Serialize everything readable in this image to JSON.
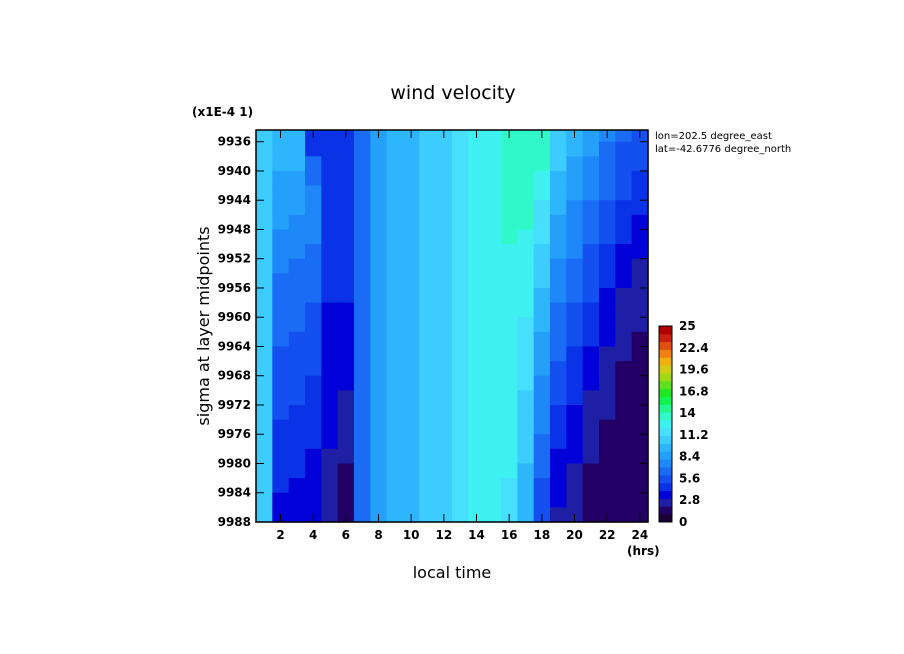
{
  "chart_data": {
    "type": "heatmap",
    "title": "wind velocity",
    "scale_note": "(x1E-4 1)",
    "xlabel": "local time",
    "x_unit": "(hrs)",
    "ylabel": "sigma at layer midpoints",
    "xlim": [
      0.5,
      24.5
    ],
    "ylim": [
      9934.4,
      9988
    ],
    "x_ticks": [
      "2",
      "4",
      "6",
      "8",
      "10",
      "12",
      "14",
      "16",
      "18",
      "20",
      "22",
      "24"
    ],
    "y_ticks": [
      "9936",
      "9940",
      "9944",
      "9948",
      "9952",
      "9956",
      "9960",
      "9964",
      "9968",
      "9972",
      "9976",
      "9980",
      "9984",
      "9988"
    ],
    "annotations": [
      "lon=202.5 degree_east",
      "lat=-42.6776 degree_north"
    ],
    "colorbar": {
      "min": 0,
      "max": 25,
      "tick_labels": [
        "25",
        "22.4",
        "19.6",
        "16.8",
        "14",
        "11.2",
        "8.4",
        "5.6",
        "2.8",
        "0"
      ],
      "colors": [
        "#1a0033",
        "#220066",
        "#1f1fa6",
        "#0000d8",
        "#0a32e6",
        "#1450f0",
        "#1a6cf5",
        "#1e88f8",
        "#24a0fa",
        "#2eb6fc",
        "#3cccfe",
        "#48defe",
        "#3ef0f0",
        "#30f8c8",
        "#20f890",
        "#10f450",
        "#20e820",
        "#60e01c",
        "#a0d818",
        "#d0cc14",
        "#f0b010",
        "#f08010",
        "#e05010",
        "#c82010",
        "#b00000"
      ]
    },
    "grid": false,
    "x": [
      1,
      2,
      3,
      4,
      5,
      6,
      7,
      8,
      9,
      10,
      11,
      12,
      13,
      14,
      15,
      16,
      17,
      18,
      19,
      20,
      21,
      22,
      23,
      24
    ],
    "y": [
      9935,
      9937,
      9939,
      9941,
      9943,
      9945,
      9947,
      9949,
      9951,
      9953,
      9955,
      9957,
      9959,
      9961,
      9963,
      9965,
      9967,
      9969,
      9971,
      9973,
      9975,
      9977,
      9979,
      9981,
      9983,
      9985,
      9987
    ],
    "z": [
      [
        10.3,
        10.3,
        10.3,
        10.3,
        10.3,
        10.3,
        10.3,
        10.3,
        10.3,
        10.3,
        10.3,
        10.3,
        10.3,
        10.3,
        10.3,
        10.3,
        10.3,
        10.3,
        10.3,
        10.3,
        10.3,
        10.3,
        10.3,
        10.3,
        10.3,
        10.3,
        10.3
      ],
      [
        9.6,
        9.6,
        9.3,
        8.9,
        8.5,
        8.2,
        8.0,
        7.7,
        7.4,
        7.1,
        6.9,
        6.7,
        6.5,
        6.3,
        6.1,
        5.9,
        5.7,
        5.5,
        5.3,
        5.1,
        4.9,
        4.7,
        4.5,
        4.3,
        4.1,
        3.9,
        3.7
      ],
      [
        9.6,
        9.5,
        9.2,
        8.8,
        8.4,
        8.0,
        7.7,
        7.4,
        7.1,
        6.8,
        6.6,
        6.4,
        6.2,
        6.0,
        5.8,
        5.6,
        5.4,
        5.2,
        5.0,
        4.8,
        4.6,
        4.4,
        4.2,
        4.0,
        3.9,
        3.7,
        3.5
      ],
      [
        4.8,
        4.8,
        6.0,
        6.8,
        7.3,
        7.4,
        7.3,
        7.1,
        6.9,
        6.6,
        6.4,
        6.1,
        5.9,
        5.6,
        5.4,
        5.2,
        5.0,
        4.8,
        4.6,
        4.4,
        4.2,
        4.0,
        3.8,
        3.6,
        3.4,
        3.2,
        3.0
      ],
      [
        4.8,
        4.5,
        4.4,
        4.4,
        4.5,
        4.6,
        4.6,
        4.5,
        4.4,
        4.3,
        4.1,
        4.0,
        3.9,
        3.8,
        3.7,
        3.6,
        3.5,
        3.4,
        3.3,
        3.2,
        3.1,
        3.0,
        2.9,
        2.8,
        2.7,
        2.6,
        2.5
      ],
      [
        4.8,
        4.7,
        4.6,
        4.5,
        4.5,
        4.4,
        4.4,
        4.3,
        4.3,
        4.2,
        4.1,
        4.0,
        3.9,
        3.8,
        3.6,
        3.4,
        3.2,
        3.0,
        2.8,
        2.6,
        2.4,
        2.2,
        2.0,
        1.9,
        1.8,
        1.7,
        1.6
      ],
      [
        6.4,
        6.4,
        6.4,
        6.4,
        6.4,
        6.4,
        6.4,
        6.4,
        6.4,
        6.4,
        6.4,
        6.4,
        6.4,
        6.4,
        6.4,
        6.4,
        6.4,
        6.4,
        6.4,
        6.4,
        6.4,
        6.4,
        6.4,
        6.4,
        6.4,
        6.4,
        6.4
      ],
      [
        8.3,
        8.3,
        8.3,
        8.3,
        8.3,
        8.3,
        8.3,
        8.3,
        8.3,
        8.3,
        8.3,
        8.3,
        8.3,
        8.3,
        8.3,
        8.3,
        8.3,
        8.3,
        8.3,
        8.3,
        8.3,
        8.3,
        8.3,
        8.3,
        8.3,
        8.3,
        8.3
      ],
      [
        9.0,
        9.0,
        9.0,
        9.0,
        9.0,
        9.0,
        9.0,
        9.0,
        9.0,
        9.0,
        9.0,
        9.0,
        9.0,
        9.0,
        9.0,
        9.0,
        9.0,
        9.0,
        9.0,
        9.0,
        9.0,
        9.0,
        9.0,
        9.0,
        9.0,
        9.0,
        9.0
      ],
      [
        9.7,
        9.7,
        9.7,
        9.7,
        9.7,
        9.7,
        9.7,
        9.7,
        9.7,
        9.7,
        9.7,
        9.7,
        9.7,
        9.7,
        9.7,
        9.7,
        9.7,
        9.7,
        9.7,
        9.7,
        9.7,
        9.7,
        9.7,
        9.7,
        9.7,
        9.7,
        9.7
      ],
      [
        10.4,
        10.4,
        10.4,
        10.4,
        10.4,
        10.4,
        10.4,
        10.4,
        10.4,
        10.4,
        10.4,
        10.4,
        10.4,
        10.4,
        10.4,
        10.4,
        10.4,
        10.4,
        10.4,
        10.4,
        10.4,
        10.4,
        10.4,
        10.4,
        10.4,
        10.4,
        10.4
      ],
      [
        10.8,
        10.8,
        10.8,
        10.8,
        10.8,
        10.8,
        10.8,
        10.8,
        10.8,
        10.8,
        10.8,
        10.8,
        10.8,
        10.8,
        10.8,
        10.8,
        10.8,
        10.8,
        10.8,
        10.8,
        10.8,
        10.8,
        10.8,
        10.8,
        10.8,
        10.8,
        10.8
      ],
      [
        11.6,
        11.6,
        11.6,
        11.6,
        11.6,
        11.6,
        11.6,
        11.6,
        11.6,
        11.6,
        11.6,
        11.6,
        11.6,
        11.6,
        11.6,
        11.6,
        11.6,
        11.6,
        11.6,
        11.6,
        11.6,
        11.6,
        11.6,
        11.6,
        11.6,
        11.6,
        11.6
      ],
      [
        12.2,
        12.2,
        12.2,
        12.2,
        12.2,
        12.2,
        12.2,
        12.2,
        12.2,
        12.2,
        12.2,
        12.2,
        12.2,
        12.2,
        12.2,
        12.2,
        12.2,
        12.2,
        12.2,
        12.2,
        12.2,
        12.2,
        12.2,
        12.2,
        12.2,
        12.2,
        12.2
      ],
      [
        12.6,
        12.6,
        12.6,
        12.6,
        12.6,
        12.6,
        12.6,
        12.6,
        12.6,
        12.6,
        12.6,
        12.6,
        12.6,
        12.6,
        12.6,
        12.6,
        12.6,
        12.6,
        12.6,
        12.6,
        12.6,
        12.6,
        12.6,
        12.6,
        12.6,
        12.6,
        12.6
      ],
      [
        13.0,
        13.0,
        13.0,
        13.0,
        13.0,
        13.0,
        13.0,
        13.0,
        12.9,
        12.9,
        12.9,
        12.9,
        12.8,
        12.8,
        12.7,
        12.7,
        12.6,
        12.6,
        12.5,
        12.5,
        12.4,
        12.3,
        12.2,
        12.1,
        11.9,
        11.7,
        11.5
      ],
      [
        13.4,
        13.4,
        13.3,
        13.3,
        13.2,
        13.1,
        13.0,
        12.9,
        12.8,
        12.6,
        12.4,
        12.2,
        12.0,
        11.8,
        11.6,
        11.4,
        11.2,
        11.0,
        10.8,
        10.6,
        10.4,
        10.2,
        10.0,
        9.8,
        9.6,
        9.4,
        9.2
      ],
      [
        13.4,
        13.3,
        13.0,
        12.6,
        12.2,
        11.8,
        11.4,
        11.0,
        10.6,
        10.3,
        10.0,
        9.7,
        9.4,
        9.1,
        8.8,
        8.5,
        8.2,
        7.9,
        7.6,
        7.3,
        7.0,
        6.7,
        6.4,
        6.1,
        5.8,
        5.5,
        5.2
      ],
      [
        10.8,
        10.5,
        10.1,
        9.7,
        9.3,
        9.0,
        8.7,
        8.4,
        8.1,
        7.8,
        7.5,
        7.2,
        6.9,
        6.6,
        6.3,
        6.0,
        5.7,
        5.4,
        5.1,
        4.8,
        4.5,
        4.2,
        3.9,
        3.6,
        3.3,
        3.0,
        2.8
      ],
      [
        9.4,
        9.1,
        8.8,
        8.5,
        8.2,
        7.9,
        7.6,
        7.3,
        7.0,
        6.7,
        6.4,
        6.1,
        5.8,
        5.5,
        5.2,
        4.9,
        4.6,
        4.3,
        4.0,
        3.7,
        3.4,
        3.2,
        3.0,
        2.8,
        2.6,
        2.4,
        2.2
      ],
      [
        8.3,
        8.0,
        7.7,
        7.4,
        7.1,
        6.8,
        6.5,
        6.2,
        5.9,
        5.6,
        5.3,
        5.0,
        4.7,
        4.4,
        4.1,
        3.8,
        3.5,
        3.2,
        2.9,
        2.7,
        2.5,
        2.3,
        2.1,
        1.9,
        1.8,
        1.7,
        1.6
      ],
      [
        7.2,
        6.9,
        6.6,
        6.3,
        6.0,
        5.7,
        5.4,
        5.1,
        4.8,
        4.5,
        4.2,
        3.9,
        3.6,
        3.3,
        3.0,
        2.8,
        2.6,
        2.4,
        2.2,
        2.0,
        1.8,
        1.7,
        1.6,
        1.5,
        1.4,
        1.3,
        1.2
      ],
      [
        6.2,
        5.9,
        5.6,
        5.3,
        5.0,
        4.7,
        4.4,
        4.1,
        3.8,
        3.5,
        3.2,
        2.9,
        2.6,
        2.4,
        2.2,
        2.0,
        1.8,
        1.7,
        1.6,
        1.5,
        1.4,
        1.3,
        1.2,
        1.1,
        1.0,
        1.0,
        1.0
      ],
      [
        5.6,
        5.3,
        5.0,
        4.7,
        4.4,
        4.1,
        3.8,
        3.5,
        3.2,
        2.9,
        2.6,
        2.4,
        2.2,
        2.0,
        1.8,
        1.7,
        1.6,
        1.5,
        1.4,
        1.3,
        1.2,
        1.1,
        1.0,
        1.0,
        1.0,
        1.0,
        1.0
      ]
    ]
  }
}
